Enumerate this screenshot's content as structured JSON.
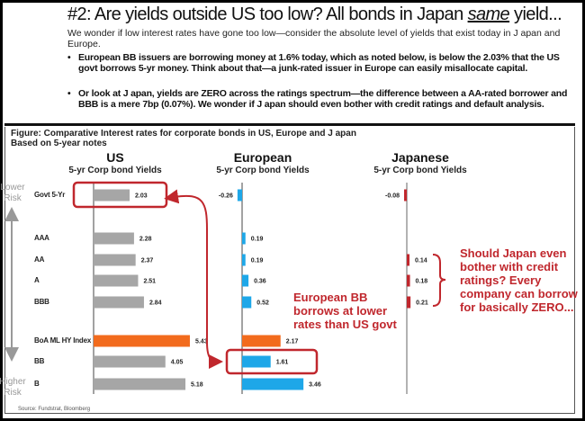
{
  "slide": {
    "title_prefix": "#2: Are yields outside US too low? All bonds in Japan ",
    "title_emph": "same",
    "title_suffix": " yield...",
    "intro": "We wonder if low interest rates have gone too low—consider the absolute level of yields that exist today in J apan and Europe.",
    "bullets": [
      "European BB issuers are borrowing money at 1.6% today, which as noted below, is below the 2.03% that the US govt borrows 5-yr money.  Think about that—a junk-rated issuer in Europe can easily misallocate capital.",
      "Or look at J apan, yields are ZERO across the ratings spectrum—the difference between a AA-rated borrower and BBB is a mere 7bp (0.07%).  We wonder if J apan should even bother with credit ratings and default analysis."
    ]
  },
  "chart_data": {
    "type": "bar",
    "orientation": "horizontal",
    "title": "Figure: Comparative Interest rates for corporate bonds in US, Europe and J apan",
    "subtitle": "Based on 5-year notes",
    "categories": [
      "Govt 5-Yr",
      "AAA",
      "AA",
      "A",
      "BBB",
      "BoA ML HY Index",
      "BB",
      "B"
    ],
    "risk_axis": {
      "top": "Lower Risk",
      "bottom": "Higher Risk"
    },
    "panels": [
      {
        "name": "US",
        "subtitle": "5-yr Corp bond Yields",
        "color": "#a6a6a6",
        "highlight_color": "#f26b1d",
        "values": [
          2.03,
          2.28,
          2.37,
          2.51,
          2.84,
          5.43,
          4.05,
          5.18
        ],
        "labels": [
          "2.03",
          "2.28",
          "2.37",
          "2.51",
          "2.84",
          "5.43",
          "4.05",
          "5.18"
        ]
      },
      {
        "name": "European",
        "subtitle": "5-yr Corp bond Yields",
        "color": "#1ea7e8",
        "highlight_color": "#f26b1d",
        "values": [
          -0.26,
          0.19,
          0.19,
          0.36,
          0.52,
          2.17,
          1.61,
          3.46
        ],
        "labels": [
          "-0.26",
          "0.19",
          "0.19",
          "0.36",
          "0.52",
          "2.17",
          "1.61",
          "3.46"
        ]
      },
      {
        "name": "Japanese",
        "subtitle": "5-yr Corp bond Yields",
        "color": "#c0272d",
        "highlight_color": "#c0272d",
        "values": [
          -0.08,
          null,
          0.14,
          0.18,
          0.21,
          null,
          null,
          null
        ],
        "labels": [
          "-0.08",
          "",
          "0.14",
          "0.18",
          "0.21",
          "",
          "",
          ""
        ]
      }
    ],
    "annotations": {
      "europe_note": [
        "European BB",
        "borrows at lower",
        "rates than US govt"
      ],
      "japan_note": [
        "Should Japan even",
        "bother with credit",
        "ratings?  Every",
        "company can borrow",
        "for basically ZERO..."
      ],
      "color": "#c0272d"
    },
    "source": "Source: Fundstrat, Bloomberg"
  }
}
